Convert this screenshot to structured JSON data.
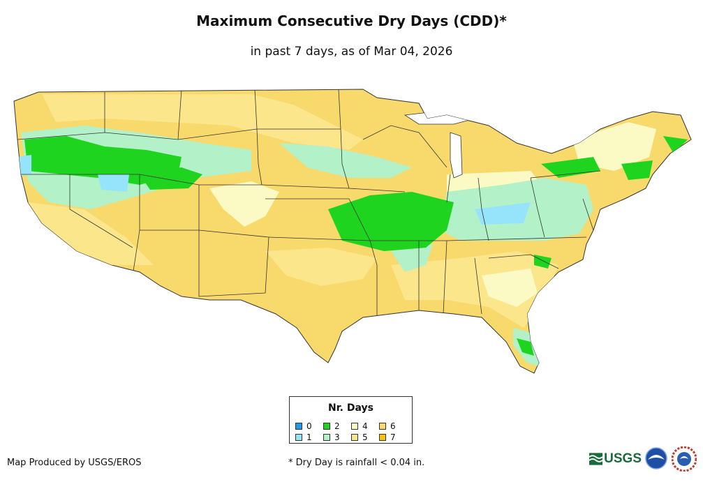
{
  "header": {
    "title": "Maximum Consecutive Dry Days (CDD)*",
    "subtitle": "in past 7 days, as of Mar 04, 2026"
  },
  "legend": {
    "title": "Nr. Days",
    "items": [
      {
        "label": "0",
        "color": "#1e9bea"
      },
      {
        "label": "1",
        "color": "#96e4fb"
      },
      {
        "label": "2",
        "color": "#1fd41f"
      },
      {
        "label": "3",
        "color": "#b3f2c8"
      },
      {
        "label": "4",
        "color": "#fbfac4"
      },
      {
        "label": "5",
        "color": "#fbe68b"
      },
      {
        "label": "6",
        "color": "#f8d96b"
      },
      {
        "label": "7",
        "color": "#f6c400"
      }
    ]
  },
  "footer": {
    "credit": "Map Produced by USGS/EROS",
    "footnote": "* Dry Day is rainfall < 0.04 in.",
    "logos": [
      "usgs-logo",
      "noaa-logo",
      "nws-logo"
    ],
    "usgs_text": "USGS"
  }
}
